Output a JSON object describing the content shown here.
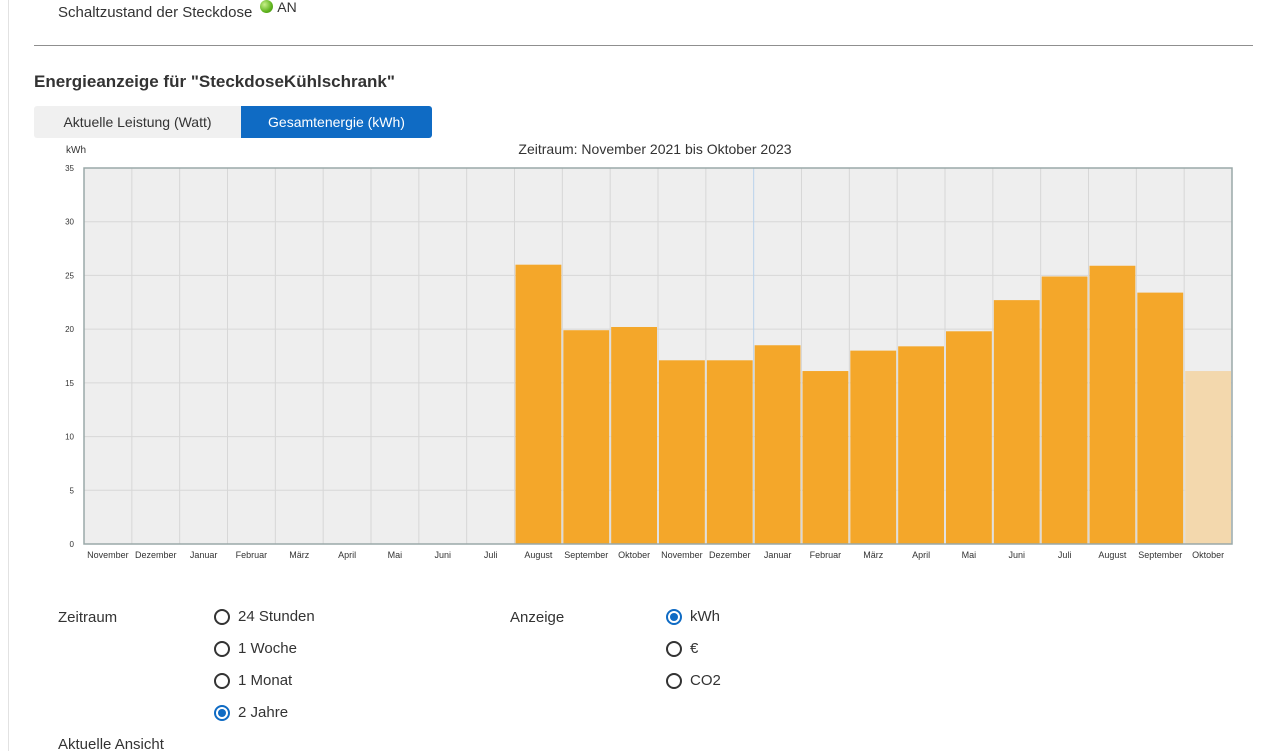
{
  "status": {
    "label": "Schaltzustand der Steckdose",
    "value": "AN"
  },
  "heading": "Energieanzeige für \"SteckdoseKühlschrank\"",
  "tabs": {
    "power": "Aktuelle Leistung (Watt)",
    "energy": "Gesamtenergie (kWh)"
  },
  "colors": {
    "bar": "#f4a72a",
    "bar_partial": "#f3d8ad",
    "active_tab": "#0f6bc4",
    "plot_bg": "#eeeeee"
  },
  "chart_data": {
    "type": "bar",
    "title": "Zeitraum: November 2021 bis Oktober 2023",
    "ylabel": "kWh",
    "ylim": [
      0,
      35
    ],
    "yticks": [
      0,
      5,
      10,
      15,
      20,
      25,
      30,
      35
    ],
    "categories": [
      "November",
      "Dezember",
      "Januar",
      "Februar",
      "März",
      "April",
      "Mai",
      "Juni",
      "Juli",
      "August",
      "September",
      "Oktober",
      "November",
      "Dezember",
      "Januar",
      "Februar",
      "März",
      "April",
      "Mai",
      "Juni",
      "Juli",
      "August",
      "September",
      "Oktober"
    ],
    "values": [
      0,
      0,
      0,
      0,
      0,
      0,
      0,
      0,
      0,
      26,
      19.9,
      20.2,
      17.1,
      17.1,
      18.5,
      16.1,
      18,
      18.4,
      19.8,
      22.7,
      24.9,
      25.9,
      23.4,
      16.1
    ],
    "partial_last": true,
    "grid": true,
    "legend": "none"
  },
  "zeitraum": {
    "label": "Zeitraum",
    "options": [
      "24 Stunden",
      "1 Woche",
      "1 Monat",
      "2 Jahre"
    ],
    "selected": 3
  },
  "anzeige": {
    "label": "Anzeige",
    "options": [
      "kWh",
      "€",
      "CO2"
    ],
    "selected": 0
  },
  "aktuelle_ansicht_label": "Aktuelle Ansicht"
}
